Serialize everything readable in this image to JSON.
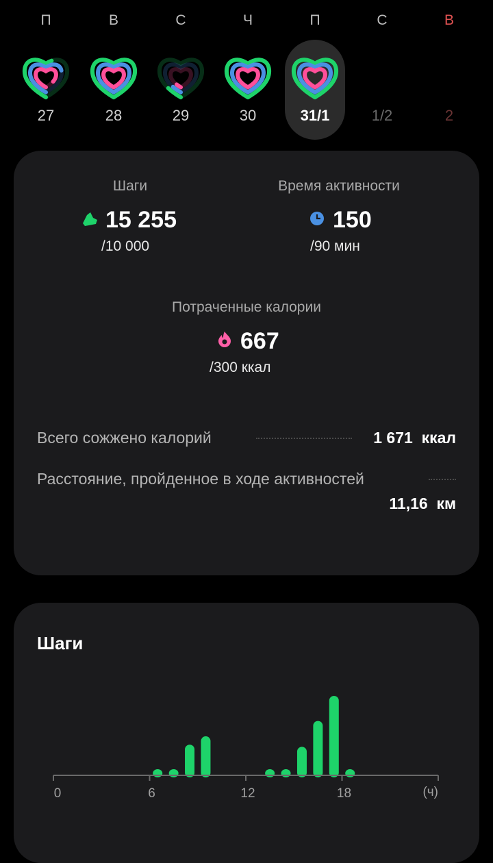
{
  "week": {
    "days": [
      {
        "dow": "П",
        "date": "27",
        "rings": [
          0.55,
          0.7,
          0.85
        ],
        "selected": false,
        "future": false,
        "weekend": false
      },
      {
        "dow": "В",
        "date": "28",
        "rings": [
          1,
          1,
          1
        ],
        "selected": false,
        "future": false,
        "weekend": false
      },
      {
        "dow": "С",
        "date": "29",
        "rings": [
          0.12,
          0.1,
          0.08
        ],
        "selected": false,
        "future": false,
        "weekend": false
      },
      {
        "dow": "Ч",
        "date": "30",
        "rings": [
          1,
          1,
          1
        ],
        "selected": false,
        "future": false,
        "weekend": false
      },
      {
        "dow": "П",
        "date": "31/1",
        "rings": [
          1,
          1,
          1
        ],
        "selected": true,
        "future": false,
        "weekend": false
      },
      {
        "dow": "С",
        "date": "1/2",
        "rings": null,
        "selected": false,
        "future": true,
        "weekend": false
      },
      {
        "dow": "В",
        "date": "2",
        "rings": null,
        "selected": false,
        "future": true,
        "weekend": true
      }
    ]
  },
  "summary": {
    "steps": {
      "label": "Шаги",
      "value": "15 255",
      "goal": "/10 000",
      "icon": "shoe-icon"
    },
    "active_time": {
      "label": "Время активности",
      "value": "150",
      "goal": "/90 мин",
      "icon": "clock-icon"
    },
    "calories": {
      "label": "Потраченные калории",
      "value": "667",
      "goal": "/300 ккал",
      "icon": "flame-icon"
    },
    "total_burned": {
      "label": "Всего сожжено калорий",
      "value": "1 671",
      "unit": "ккал"
    },
    "distance": {
      "label": "Расстояние, пройденное в ходе активностей",
      "value": "11,16",
      "unit": "км"
    }
  },
  "colors": {
    "steps": "#1ed36a",
    "active": "#4a90e2",
    "calories": "#ff4f9a",
    "weekend": "#e05252",
    "card": "#1b1b1d"
  },
  "steps_card": {
    "title": "Шаги"
  },
  "chart_data": {
    "type": "bar",
    "title": "Шаги",
    "x": [
      6,
      7,
      8,
      9,
      13,
      14,
      15,
      16,
      17,
      18
    ],
    "values": [
      250,
      250,
      1830,
      2340,
      250,
      250,
      1700,
      3280,
      4810,
      250
    ],
    "xlim": [
      0,
      24
    ],
    "xticks": [
      "0",
      "6",
      "12",
      "18"
    ],
    "xunit": "(ч)",
    "color": "#1ed36a",
    "grid": false
  }
}
